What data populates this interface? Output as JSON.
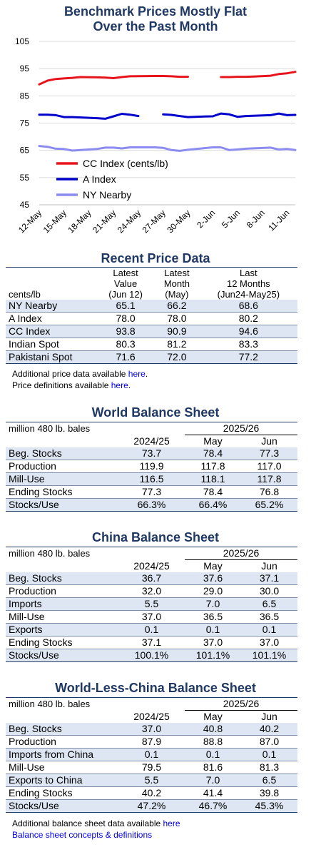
{
  "chart_data": {
    "type": "line",
    "title": "Benchmark Prices Mostly Flat Over the Past Month",
    "title_lines": [
      "Benchmark Prices Mostly Flat",
      "Over the Past Month"
    ],
    "ylim": [
      45,
      105
    ],
    "yticks": [
      "105",
      "95",
      "85",
      "75",
      "65",
      "55",
      "45"
    ],
    "xticks": [
      "12-May",
      "15-May",
      "18-May",
      "21-May",
      "24-May",
      "27-May",
      "30-May",
      "2-Jun",
      "5-Jun",
      "8-Jun",
      "11-Jun"
    ],
    "x_start": "2025-05-12",
    "x_end": "2025-06-12",
    "legend": "lower-left",
    "series": [
      {
        "name": "CC Index (cents/lb)",
        "color": "#e8141c",
        "points": [
          [
            "2025-05-12",
            89.2
          ],
          [
            "2025-05-13",
            90.6
          ],
          [
            "2025-05-14",
            91.2
          ],
          [
            "2025-05-15",
            91.4
          ],
          [
            "2025-05-16",
            91.6
          ],
          [
            "2025-05-17",
            91.9
          ],
          [
            "2025-05-19",
            91.8
          ],
          [
            "2025-05-20",
            91.7
          ],
          [
            "2025-05-21",
            91.5
          ],
          [
            "2025-05-22",
            91.9
          ],
          [
            "2025-05-23",
            92.2
          ],
          [
            "2025-05-26",
            92.3
          ],
          [
            "2025-05-27",
            92.3
          ],
          [
            "2025-05-28",
            92.2
          ],
          [
            "2025-05-29",
            92.0
          ],
          [
            "2025-05-30",
            92.0
          ],
          null,
          [
            "2025-06-03",
            91.9
          ],
          [
            "2025-06-04",
            91.9
          ],
          [
            "2025-06-05",
            92.0
          ],
          [
            "2025-06-06",
            92.0
          ],
          [
            "2025-06-07",
            92.1
          ],
          [
            "2025-06-09",
            92.4
          ],
          [
            "2025-06-10",
            93.0
          ],
          [
            "2025-06-11",
            93.3
          ],
          [
            "2025-06-12",
            93.8
          ]
        ]
      },
      {
        "name": "A Index",
        "color": "#0000cc",
        "points": [
          [
            "2025-05-12",
            78.1
          ],
          [
            "2025-05-13",
            78.1
          ],
          [
            "2025-05-14",
            77.9
          ],
          [
            "2025-05-15",
            77.2
          ],
          [
            "2025-05-16",
            77.2
          ],
          [
            "2025-05-19",
            76.8
          ],
          [
            "2025-05-20",
            76.6
          ],
          [
            "2025-05-21",
            77.5
          ],
          [
            "2025-05-22",
            78.4
          ],
          [
            "2025-05-23",
            78.1
          ],
          [
            "2025-05-24",
            77.6
          ],
          null,
          [
            "2025-05-27",
            78.2
          ],
          [
            "2025-05-28",
            78.0
          ],
          [
            "2025-05-29",
            77.6
          ],
          [
            "2025-05-30",
            77.2
          ],
          [
            "2025-06-01",
            77.4
          ],
          [
            "2025-06-02",
            77.5
          ],
          [
            "2025-06-03",
            78.5
          ],
          [
            "2025-06-04",
            78.2
          ],
          [
            "2025-06-05",
            77.3
          ],
          [
            "2025-06-06",
            77.6
          ],
          [
            "2025-06-09",
            77.9
          ],
          [
            "2025-06-10",
            78.5
          ],
          [
            "2025-06-11",
            77.9
          ],
          [
            "2025-06-12",
            78.0
          ]
        ]
      },
      {
        "name": "NY Nearby",
        "color": "#8c8cf0",
        "points": [
          [
            "2025-05-12",
            66.6
          ],
          [
            "2025-05-13",
            66.3
          ],
          [
            "2025-05-14",
            65.6
          ],
          [
            "2025-05-15",
            65.5
          ],
          [
            "2025-05-16",
            64.9
          ],
          [
            "2025-05-19",
            65.5
          ],
          [
            "2025-05-20",
            66.0
          ],
          [
            "2025-05-21",
            66.0
          ],
          [
            "2025-05-22",
            65.7
          ],
          [
            "2025-05-23",
            66.1
          ],
          [
            "2025-05-26",
            66.1
          ],
          [
            "2025-05-27",
            65.9
          ],
          [
            "2025-05-28",
            65.1
          ],
          [
            "2025-05-29",
            64.8
          ],
          [
            "2025-05-30",
            65.2
          ],
          [
            "2025-06-02",
            66.1
          ],
          [
            "2025-06-03",
            66.1
          ],
          [
            "2025-06-04",
            65.1
          ],
          [
            "2025-06-05",
            65.3
          ],
          [
            "2025-06-06",
            65.6
          ],
          [
            "2025-06-09",
            66.0
          ],
          [
            "2025-06-10",
            65.3
          ],
          [
            "2025-06-11",
            65.5
          ],
          [
            "2025-06-12",
            65.1
          ]
        ]
      }
    ]
  },
  "recent": {
    "title": "Recent Price Data",
    "unit": "cents/lb",
    "headers": [
      [
        "Latest",
        "Value",
        "(Jun 12)"
      ],
      [
        "Latest",
        "Month",
        "(May)"
      ],
      [
        "Last",
        "12 Months",
        "(Jun24-May25)"
      ]
    ],
    "rows": [
      {
        "label": "NY Nearby",
        "v": [
          "65.1",
          "66.2",
          "68.6"
        ]
      },
      {
        "label": "A Index",
        "v": [
          "78.0",
          "78.0",
          "80.2"
        ]
      },
      {
        "label": "CC Index",
        "v": [
          "93.8",
          "90.9",
          "94.6"
        ]
      },
      {
        "label": "Indian Spot",
        "v": [
          "80.3",
          "81.2",
          "83.3"
        ]
      },
      {
        "label": "Pakistani Spot",
        "v": [
          "71.6",
          "72.0",
          "77.2"
        ]
      }
    ],
    "note1_text": "Additional price data available ",
    "note1_link": "here",
    "note1_end": ".",
    "note2_text": "Price definitions available ",
    "note2_link": "here",
    "note2_end": "."
  },
  "world": {
    "title": "World Balance Sheet",
    "unit": "million 480 lb. bales",
    "year_next": "2025/26",
    "col_prev": "2024/25",
    "col_may": "May",
    "col_jun": "Jun",
    "rows": [
      {
        "label": "Beg. Stocks",
        "v": [
          "73.7",
          "78.4",
          "77.3"
        ]
      },
      {
        "label": "Production",
        "v": [
          "119.9",
          "117.8",
          "117.0"
        ]
      },
      {
        "label": "Mill-Use",
        "v": [
          "116.5",
          "118.1",
          "117.8"
        ]
      },
      {
        "label": "Ending Stocks",
        "v": [
          "77.3",
          "78.4",
          "76.8"
        ]
      },
      {
        "label": "Stocks/Use",
        "v": [
          "66.3%",
          "66.4%",
          "65.2%"
        ]
      }
    ]
  },
  "china": {
    "title": "China Balance Sheet",
    "unit": "million 480 lb. bales",
    "year_next": "2025/26",
    "col_prev": "2024/25",
    "col_may": "May",
    "col_jun": "Jun",
    "rows": [
      {
        "label": "Beg. Stocks",
        "v": [
          "36.7",
          "37.6",
          "37.1"
        ]
      },
      {
        "label": "Production",
        "v": [
          "32.0",
          "29.0",
          "30.0"
        ]
      },
      {
        "label": "Imports",
        "v": [
          "5.5",
          "7.0",
          "6.5"
        ]
      },
      {
        "label": "Mill-Use",
        "v": [
          "37.0",
          "36.5",
          "36.5"
        ]
      },
      {
        "label": "Exports",
        "v": [
          "0.1",
          "0.1",
          "0.1"
        ]
      },
      {
        "label": "Ending Stocks",
        "v": [
          "37.1",
          "37.0",
          "37.0"
        ]
      },
      {
        "label": "Stocks/Use",
        "v": [
          "100.1%",
          "101.1%",
          "101.1%"
        ]
      }
    ]
  },
  "wlc": {
    "title": "World-Less-China Balance Sheet",
    "unit": "million 480 lb. bales",
    "year_next": "2025/26",
    "col_prev": "2024/25",
    "col_may": "May",
    "col_jun": "Jun",
    "rows": [
      {
        "label": "Beg. Stocks",
        "v": [
          "37.0",
          "40.8",
          "40.2"
        ]
      },
      {
        "label": "Production",
        "v": [
          "87.9",
          "88.8",
          "87.0"
        ]
      },
      {
        "label": "Imports from China",
        "v": [
          "0.1",
          "0.1",
          "0.1"
        ]
      },
      {
        "label": "Mill-Use",
        "v": [
          "79.5",
          "81.6",
          "81.3"
        ]
      },
      {
        "label": "Exports to China",
        "v": [
          "5.5",
          "7.0",
          "6.5"
        ]
      },
      {
        "label": "Ending Stocks",
        "v": [
          "40.2",
          "41.4",
          "39.8"
        ]
      },
      {
        "label": "Stocks/Use",
        "v": [
          "47.2%",
          "46.7%",
          "45.3%"
        ]
      }
    ],
    "note1_text": "Additional balance sheet data available ",
    "note1_link": "here",
    "note2_link": "Balance sheet concepts & definitions"
  }
}
